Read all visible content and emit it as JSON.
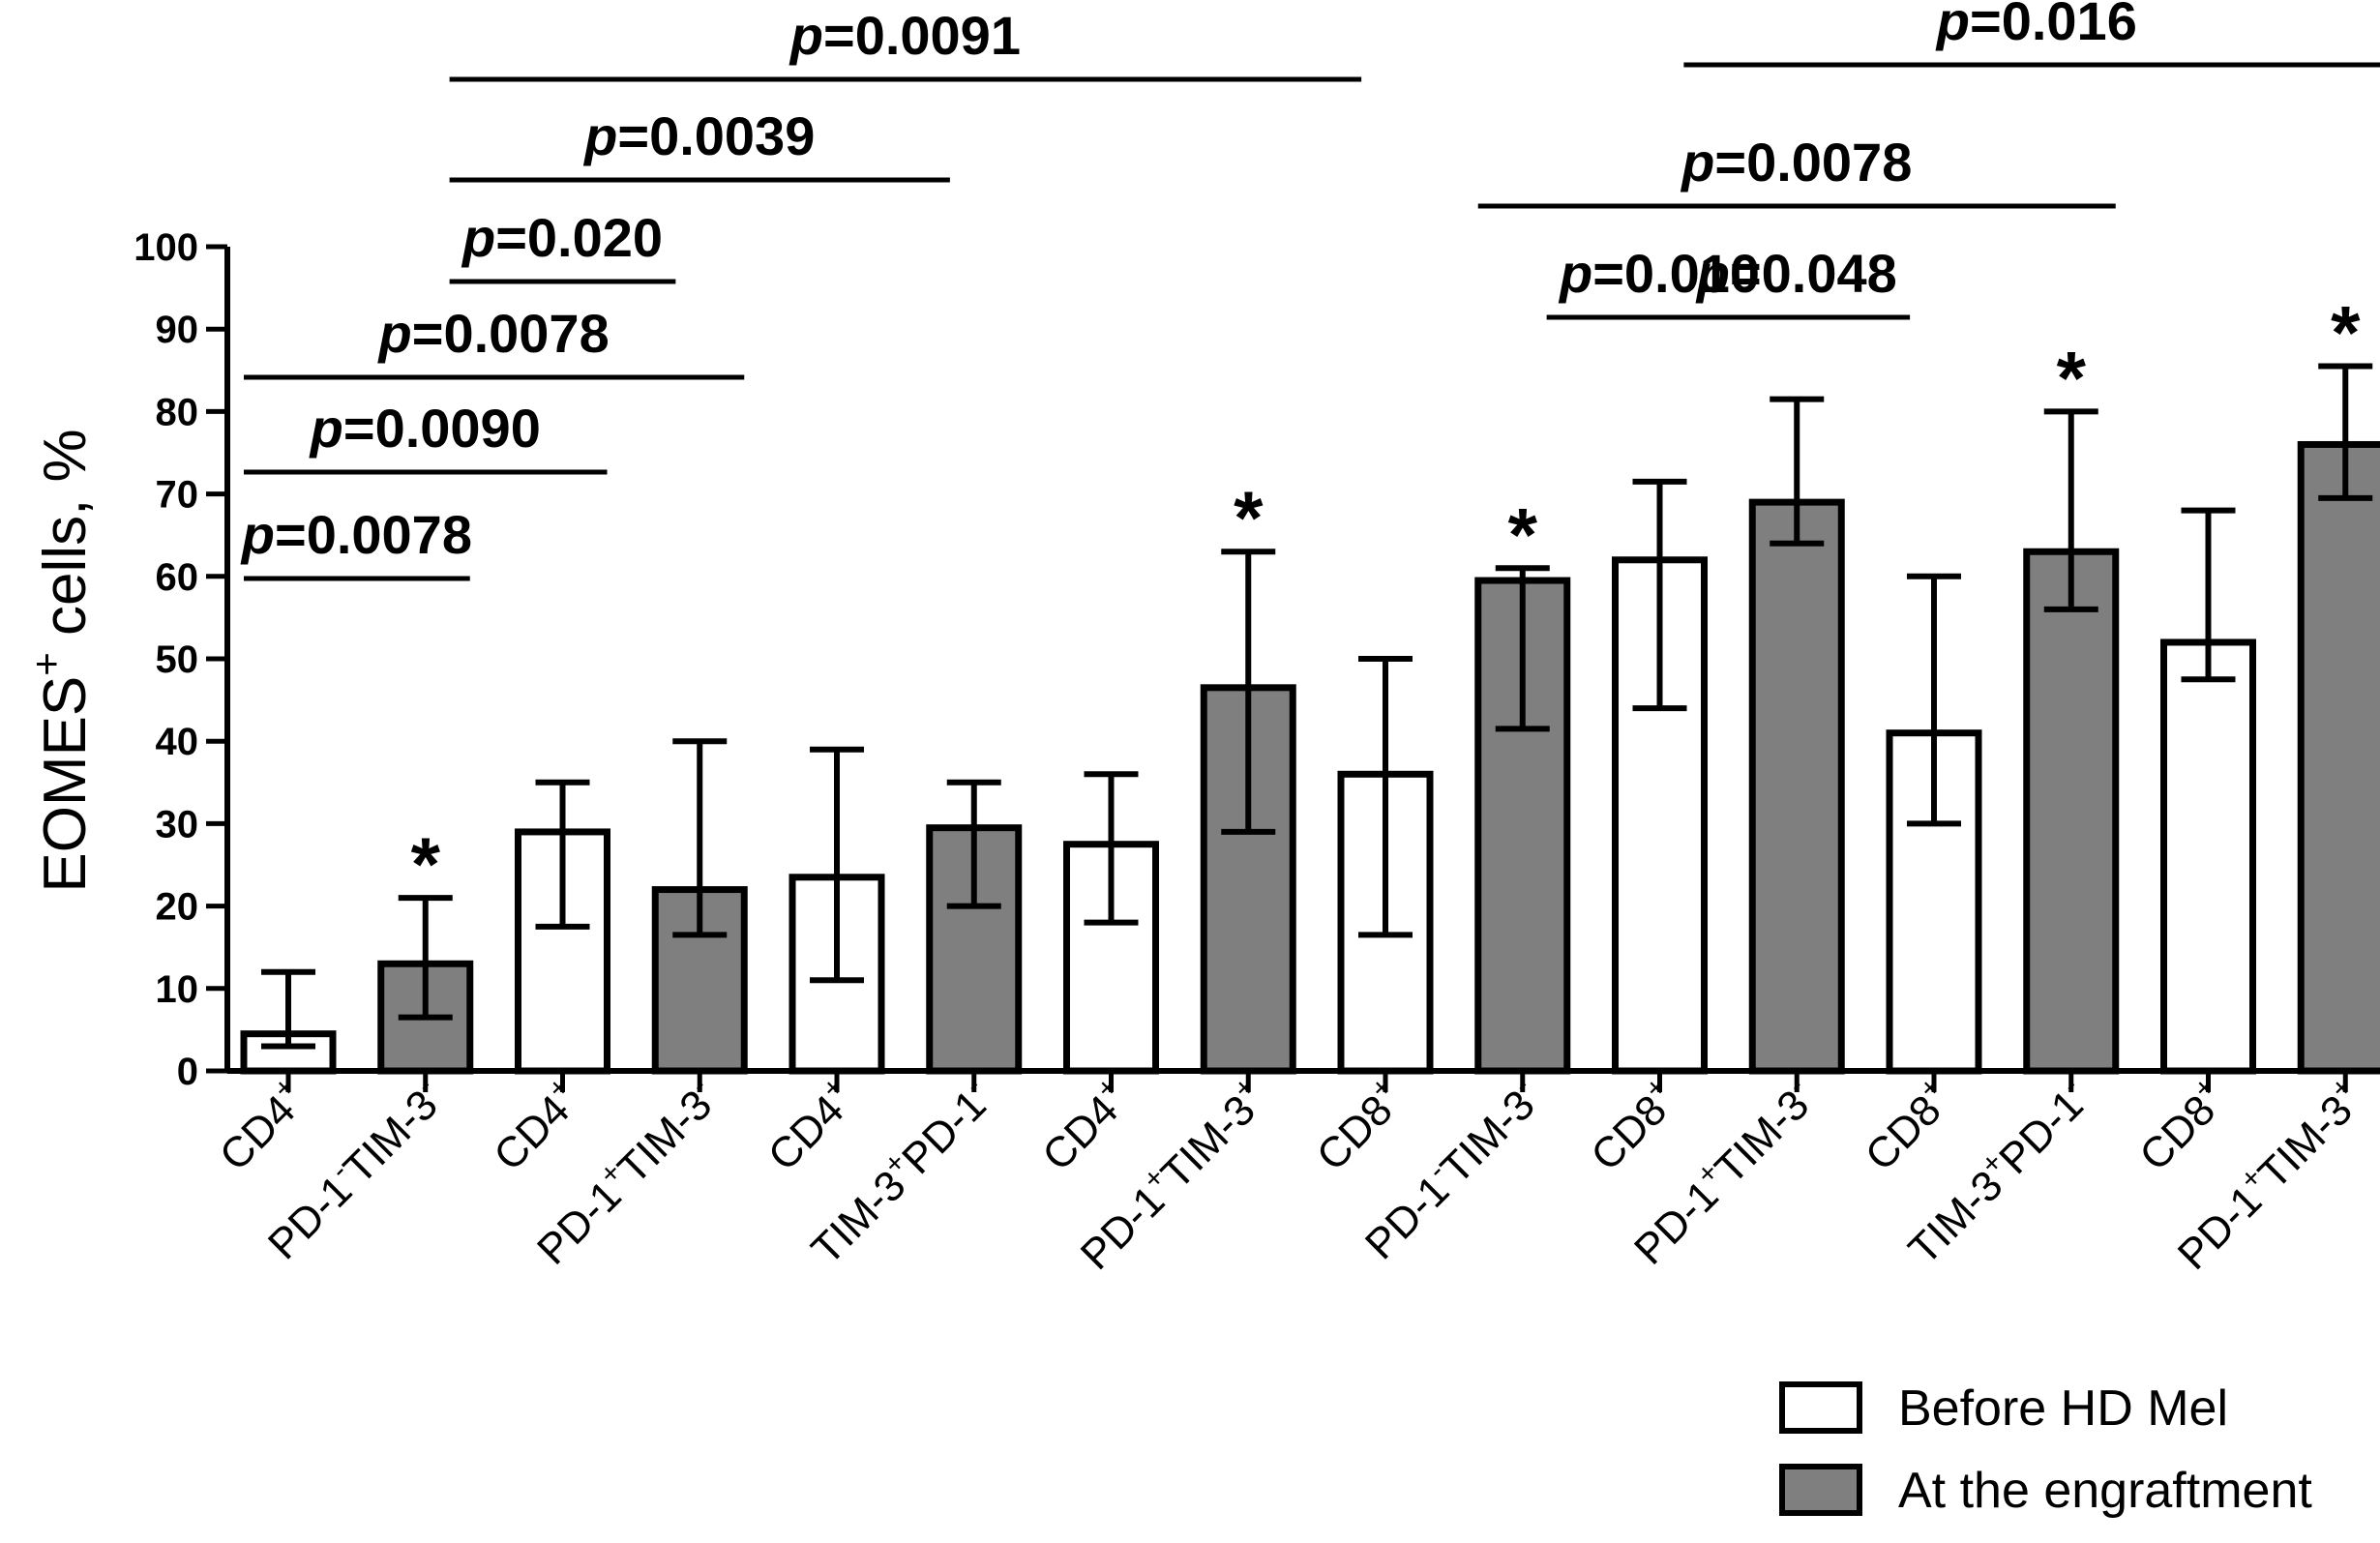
{
  "chart_data": {
    "type": "bar",
    "ylabel_main": "EOMES",
    "ylabel_sup": "+",
    "ylabel_rest": " cells, %",
    "ylim": [
      0,
      100
    ],
    "yticks": [
      "0",
      "10",
      "20",
      "30",
      "40",
      "50",
      "60",
      "70",
      "80",
      "90",
      "100"
    ],
    "categories": [
      {
        "line1": "CD4",
        "sup1": "+",
        "line2": [
          {
            "t": "PD-1"
          },
          {
            "s": "-"
          },
          {
            "t": "TIM-3"
          },
          {
            "s": "-"
          }
        ]
      },
      {
        "line1": "CD4",
        "sup1": "+",
        "line2": [
          {
            "t": "PD-1"
          },
          {
            "s": "+"
          },
          {
            "t": "TIM-3"
          },
          {
            "s": "-"
          }
        ]
      },
      {
        "line1": "CD4",
        "sup1": "+",
        "line2": [
          {
            "t": "TIM-3"
          },
          {
            "s": "+"
          },
          {
            "t": "PD-1"
          },
          {
            "s": "-"
          }
        ]
      },
      {
        "line1": "CD4",
        "sup1": "+",
        "line2": [
          {
            "t": "PD-1"
          },
          {
            "s": "+"
          },
          {
            "t": "TIM-3"
          },
          {
            "s": "+"
          }
        ]
      },
      {
        "line1": "CD8",
        "sup1": "+",
        "line2": [
          {
            "t": "PD-1"
          },
          {
            "s": "-"
          },
          {
            "t": "TIM-3"
          },
          {
            "s": "-"
          }
        ]
      },
      {
        "line1": "CD8",
        "sup1": "+",
        "line2": [
          {
            "t": "PD-1"
          },
          {
            "s": "+"
          },
          {
            "t": "TIM-3"
          },
          {
            "s": "-"
          }
        ]
      },
      {
        "line1": "CD8",
        "sup1": "+",
        "line2": [
          {
            "t": "TIM-3"
          },
          {
            "s": "+"
          },
          {
            "t": "PD-1"
          },
          {
            "s": "-"
          }
        ]
      },
      {
        "line1": "CD8",
        "sup1": "+",
        "line2": [
          {
            "t": "PD-1"
          },
          {
            "s": "+"
          },
          {
            "t": "TIM-3"
          },
          {
            "s": "+"
          }
        ]
      }
    ],
    "series": [
      {
        "name": "Before HD Mel",
        "color": "#ffffff",
        "values": [
          4.5,
          29,
          23.5,
          27.5,
          36,
          62,
          41,
          52
        ],
        "err_low": [
          3,
          17.5,
          11,
          18,
          16.5,
          44,
          30,
          47.5
        ],
        "err_high": [
          12,
          35,
          39,
          36,
          50,
          71.5,
          60,
          68
        ]
      },
      {
        "name": "At the engraftment",
        "color": "#7f7f7f",
        "values": [
          13,
          22,
          29.5,
          46.5,
          59.5,
          69,
          63,
          76
        ],
        "err_low": [
          6.5,
          16.5,
          20,
          29,
          41.5,
          64,
          56,
          69.5
        ],
        "err_high": [
          21,
          40,
          35,
          63,
          61,
          81.5,
          80,
          85.5
        ]
      }
    ],
    "stars": [
      0,
      3,
      4,
      6,
      7
    ],
    "star_symbol": "*",
    "significance": [
      {
        "prefix": "p",
        "label": "=0.0078",
        "from": 0,
        "to": 1
      },
      {
        "prefix": "p",
        "label": "=0.0090",
        "from": 0,
        "to": 2
      },
      {
        "prefix": "p",
        "label": "=0.0078",
        "from": 0,
        "to": 3
      },
      {
        "prefix": "p",
        "label": "=0.020",
        "from": 1.5,
        "to": 2.5
      },
      {
        "prefix": "p",
        "label": "=0.0039",
        "from": 1.5,
        "to": 4.5
      },
      {
        "prefix": "p",
        "label": "=0.0091",
        "from": 1.5,
        "to": 7.5
      },
      {
        "prefix": "p",
        "label": "=0.010",
        "from": 9.5,
        "to": 10.5
      },
      {
        "prefix": "p",
        "label": "=0.048",
        "from": 10.5,
        "to": 11.5
      },
      {
        "prefix": "p",
        "label": "=0.0078",
        "from": 9.0,
        "to": 13.0
      },
      {
        "prefix": "p",
        "label": "=0.016",
        "from": 10.5,
        "to": 15.0
      }
    ]
  }
}
